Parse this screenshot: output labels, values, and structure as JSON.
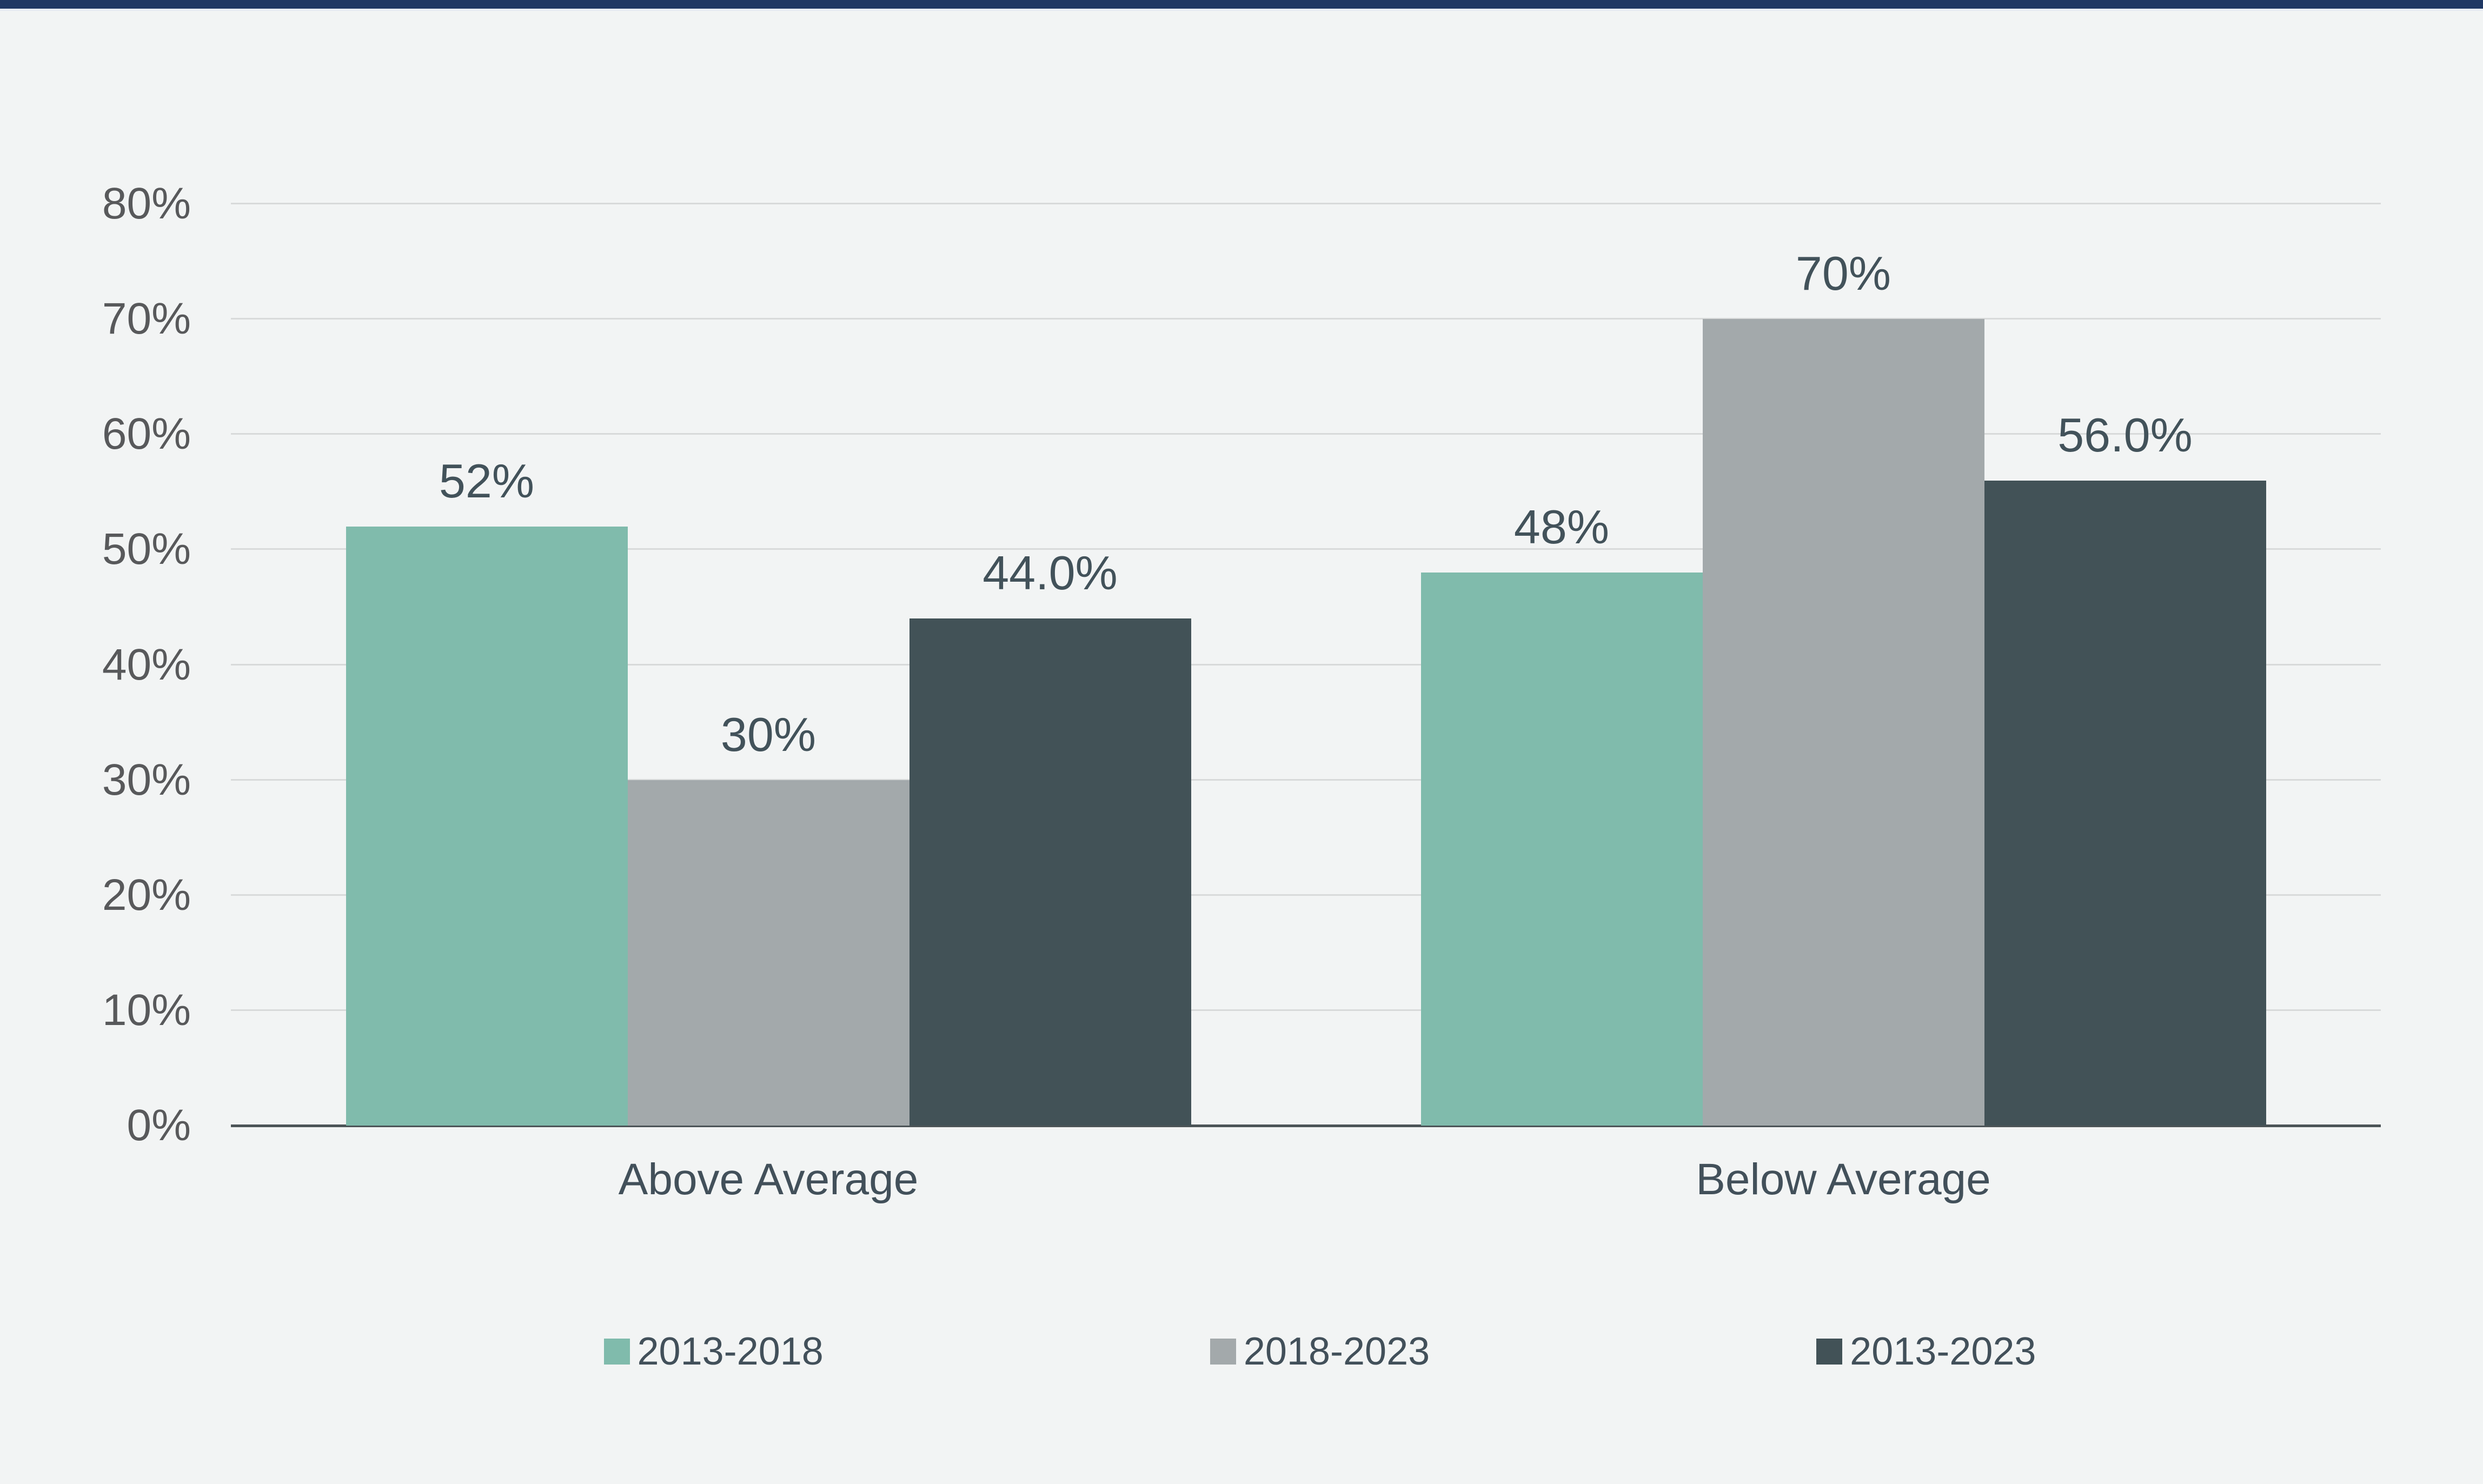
{
  "page": {
    "background_color": "#f2f4f4",
    "top_bar_color": "#1f3864"
  },
  "chart_data": {
    "type": "bar",
    "title": "",
    "xlabel": "",
    "ylabel": "",
    "categories": [
      "Above Average",
      "Below Average"
    ],
    "series": [
      {
        "name": "2013-2018",
        "color": "#80bbac",
        "values": [
          52,
          48
        ],
        "data_labels": [
          "52%",
          "48%"
        ]
      },
      {
        "name": "2018-2023",
        "color": "#a3a9ab",
        "values": [
          30,
          70
        ],
        "data_labels": [
          "30%",
          "70%"
        ]
      },
      {
        "name": "2013-2023",
        "color": "#425257",
        "values": [
          44,
          56
        ],
        "data_labels": [
          "44.0%",
          "56.0%"
        ]
      }
    ],
    "ylim": [
      0,
      80
    ],
    "yticks": [
      0,
      10,
      20,
      30,
      40,
      50,
      60,
      70,
      80
    ],
    "ytick_labels": [
      "0%",
      "10%",
      "20%",
      "30%",
      "40%",
      "50%",
      "60%",
      "70%",
      "80%"
    ],
    "grid": true,
    "legend_position": "bottom",
    "colors": {
      "gridline": "#d8dada",
      "axis_line": "#4c5457",
      "tick_label": "#58595b",
      "bar_value_label": "#42525a",
      "category_label": "#42505a"
    }
  }
}
